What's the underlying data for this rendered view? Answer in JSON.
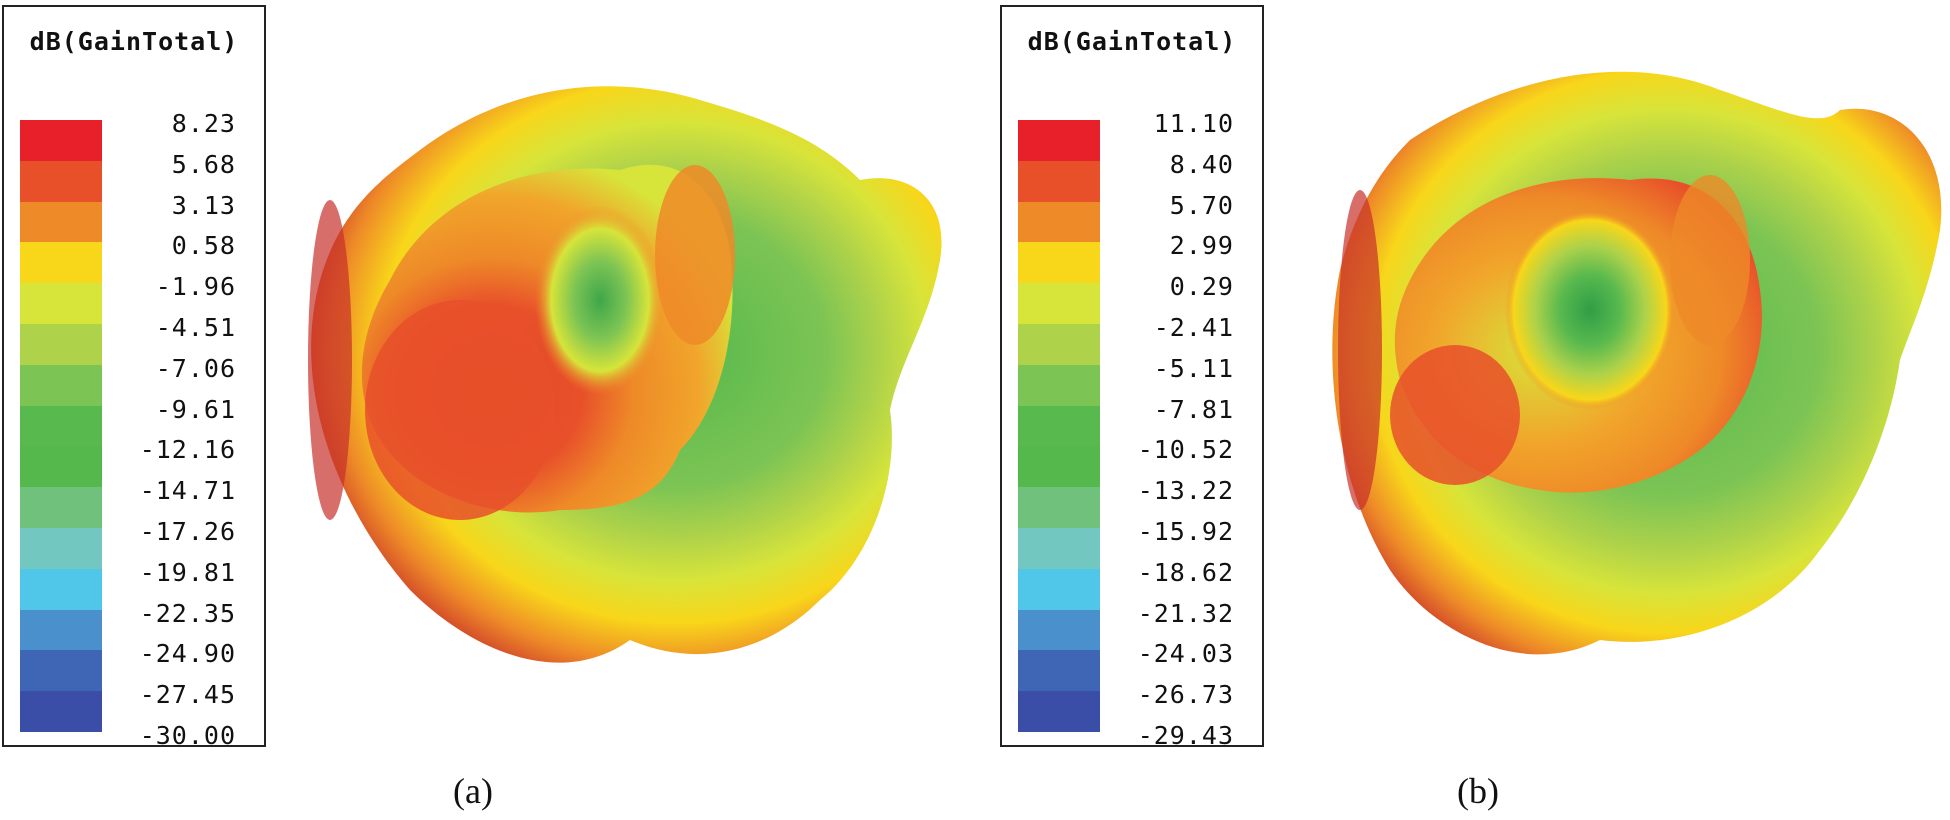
{
  "figures": [
    {
      "id": "a",
      "legend_title": "dB(GainTotal)",
      "ticks": [
        "8.23",
        "5.68",
        "3.13",
        "0.58",
        "-1.96",
        "-4.51",
        "-7.06",
        "-9.61",
        "-12.16",
        "-14.71",
        "-17.26",
        "-19.81",
        "-22.35",
        "-24.90",
        "-27.45",
        "-30.00"
      ],
      "caption": "(a)"
    },
    {
      "id": "b",
      "legend_title": "dB(GainTotal)",
      "ticks": [
        "11.10",
        "8.40",
        "5.70",
        "2.99",
        "0.29",
        "-2.41",
        "-5.11",
        "-7.81",
        "-10.52",
        "-13.22",
        "-15.92",
        "-18.62",
        "-21.32",
        "-24.03",
        "-26.73",
        "-29.43"
      ],
      "caption": "(b)"
    }
  ],
  "colormap": [
    "#e8202a",
    "#e8502a",
    "#ee8a28",
    "#f8d61a",
    "#d7e43a",
    "#aed24a",
    "#7cc454",
    "#58b94e",
    "#55b84c",
    "#6fc17c",
    "#72c8c0",
    "#50c6e8",
    "#4a90cc",
    "#3f66b4",
    "#3a4ea8"
  ]
}
